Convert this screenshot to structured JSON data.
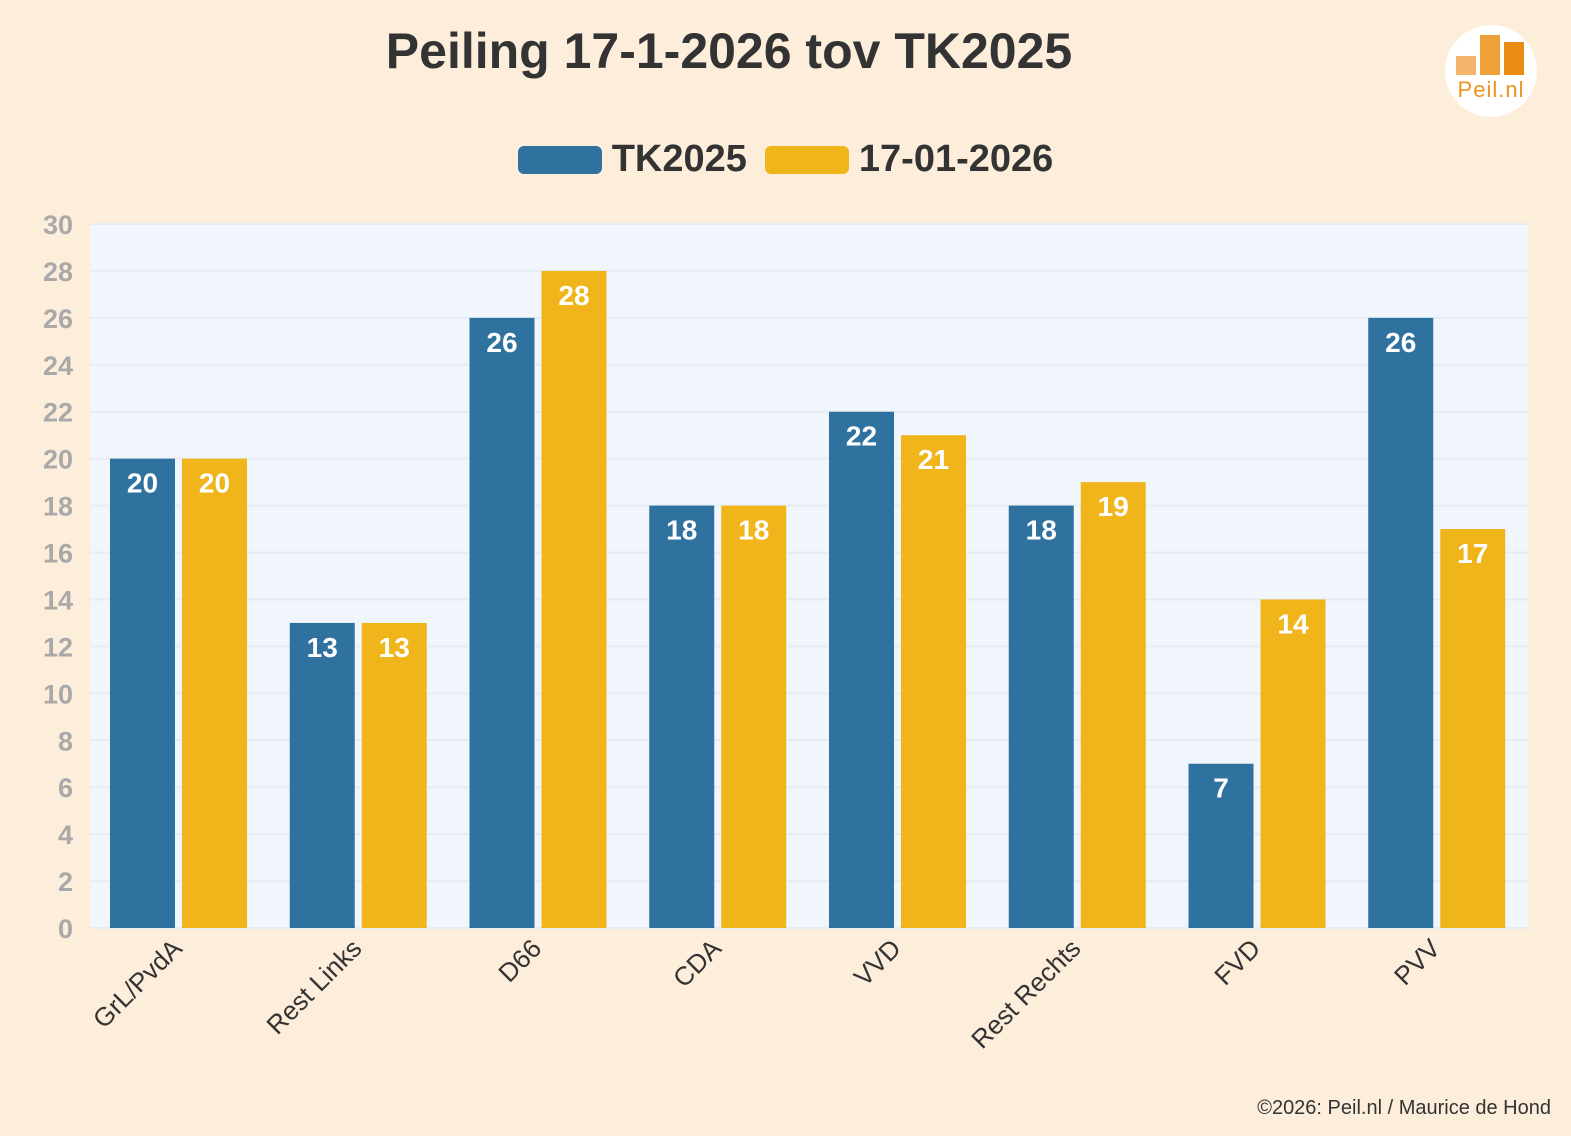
{
  "chart_data": {
    "type": "bar",
    "title": "Peiling 17-1-2026 tov TK2025",
    "categories": [
      "GrL/PvdA",
      "Rest Links",
      "D66",
      "CDA",
      "VVD",
      "Rest Rechts",
      "FVD",
      "PVV"
    ],
    "series": [
      {
        "name": "TK2025",
        "values": [
          20,
          13,
          26,
          18,
          22,
          18,
          7,
          26
        ],
        "color": "#2f72a0"
      },
      {
        "name": "17-01-2026",
        "values": [
          20,
          13,
          28,
          18,
          21,
          19,
          14,
          17
        ],
        "color": "#f0b51b"
      }
    ],
    "ylim": [
      0,
      30
    ],
    "ytick_step": 2,
    "xlabel": "",
    "ylabel": "",
    "grid": true,
    "legend": "top-center",
    "colors": {
      "plot_background": "#f0f6fc",
      "page_background": "#fdeedb",
      "grid": "#e6ecf2",
      "tick_text": "#a9a9a9"
    }
  },
  "logo": {
    "text": "Peil.nl"
  },
  "footer": {
    "text": "©2026: Peil.nl / Maurice de Hond"
  }
}
